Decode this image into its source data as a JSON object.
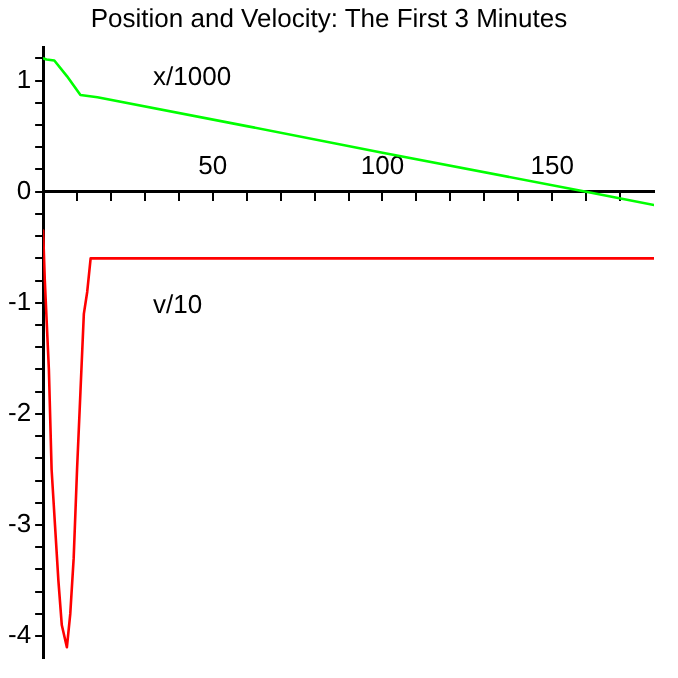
{
  "chart_data": {
    "type": "line",
    "title": "Position and Velocity: The First 3 Minutes",
    "series": [
      {
        "name": "x/1000",
        "color": "#00ff00",
        "x": [
          0,
          1,
          3.3,
          7,
          11,
          16,
          60,
          100,
          160,
          180
        ],
        "values": [
          1.2,
          1.19,
          1.18,
          1.04,
          0.87,
          0.85,
          0.59,
          0.35,
          0,
          -0.12
        ]
      },
      {
        "name": "v/10",
        "color": "#ff0000",
        "x": [
          0,
          0.5,
          1.7,
          2.5,
          3.5,
          4.5,
          5.5,
          7,
          8,
          9,
          10,
          11,
          12,
          13,
          14,
          180
        ],
        "values": [
          -0.35,
          -0.8,
          -1.6,
          -2.5,
          -3.0,
          -3.5,
          -3.9,
          -4.1,
          -3.8,
          -3.3,
          -2.5,
          -1.8,
          -1.1,
          -0.9,
          -0.6,
          -0.6
        ]
      }
    ],
    "xlim": [
      0,
      180
    ],
    "ylim": [
      -4.2,
      1.3
    ],
    "xticks": [
      {
        "value": 10,
        "label": null
      },
      {
        "value": 20,
        "label": null
      },
      {
        "value": 30,
        "label": null
      },
      {
        "value": 40,
        "label": null
      },
      50,
      {
        "value": 60,
        "label": null
      },
      {
        "value": 70,
        "label": null
      },
      {
        "value": 80,
        "label": null
      },
      {
        "value": 90,
        "label": null
      },
      100,
      {
        "value": 110,
        "label": null
      },
      {
        "value": 120,
        "label": null
      },
      {
        "value": 130,
        "label": null
      },
      {
        "value": 140,
        "label": null
      },
      150,
      {
        "value": 160,
        "label": null
      },
      {
        "value": 170,
        "label": null
      }
    ],
    "yticks": [
      -4,
      {
        "value": -3.8,
        "label": null
      },
      {
        "value": -3.6,
        "label": null
      },
      {
        "value": -3.4,
        "label": null
      },
      {
        "value": -3.2,
        "label": null
      },
      -3,
      {
        "value": -2.8,
        "label": null
      },
      {
        "value": -2.6,
        "label": null
      },
      {
        "value": -2.4,
        "label": null
      },
      {
        "value": -2.2,
        "label": null
      },
      -2,
      {
        "value": -1.8,
        "label": null
      },
      {
        "value": -1.6,
        "label": null
      },
      {
        "value": -1.4,
        "label": null
      },
      {
        "value": -1.2,
        "label": null
      },
      -1,
      {
        "value": -0.8,
        "label": null
      },
      {
        "value": -0.6,
        "label": null
      },
      {
        "value": -0.4,
        "label": null
      },
      {
        "value": -0.2,
        "label": null
      },
      0,
      {
        "value": 0.2,
        "label": null
      },
      {
        "value": 0.4,
        "label": null
      },
      {
        "value": 0.6,
        "label": null
      },
      {
        "value": 0.8,
        "label": null
      },
      1,
      {
        "value": 1.2,
        "label": null
      }
    ],
    "grid": false,
    "legend": false,
    "marker": "none",
    "line_style": "solid"
  }
}
